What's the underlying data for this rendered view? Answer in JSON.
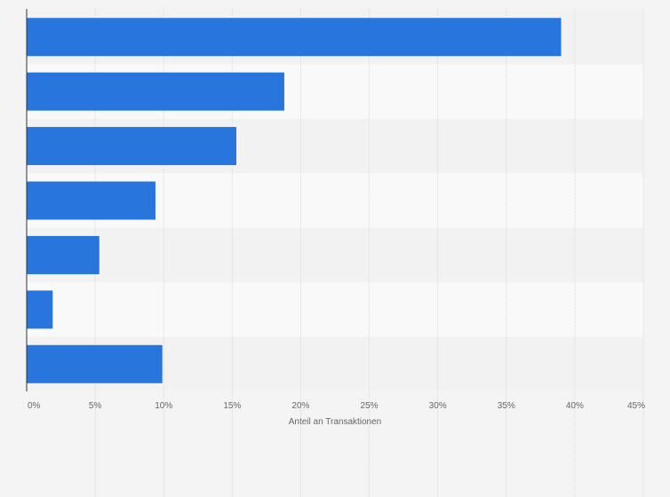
{
  "chart_data": {
    "type": "bar",
    "orientation": "horizontal",
    "categories": [
      "",
      "",
      "",
      "",
      "",
      "",
      ""
    ],
    "values": [
      39.0,
      18.8,
      15.3,
      9.4,
      5.3,
      1.9,
      9.9
    ],
    "xlabel": "Anteil an Transaktionen",
    "ylabel": "",
    "xlim": [
      0,
      45
    ],
    "ticks": [
      0,
      5,
      10,
      15,
      20,
      25,
      30,
      35,
      40,
      45
    ],
    "tick_labels": [
      "0%",
      "5%",
      "10%",
      "15%",
      "20%",
      "25%",
      "30%",
      "35%",
      "40%",
      "45%"
    ],
    "grid": "vertical dashed",
    "legend": "none",
    "colors": {
      "bar": "#2876dd",
      "background": "#f4f4f4",
      "band_light": "#f9f9f9",
      "band_dark": "#f2f2f2",
      "grid": "#d9d9d9",
      "axis": "#333333"
    }
  }
}
